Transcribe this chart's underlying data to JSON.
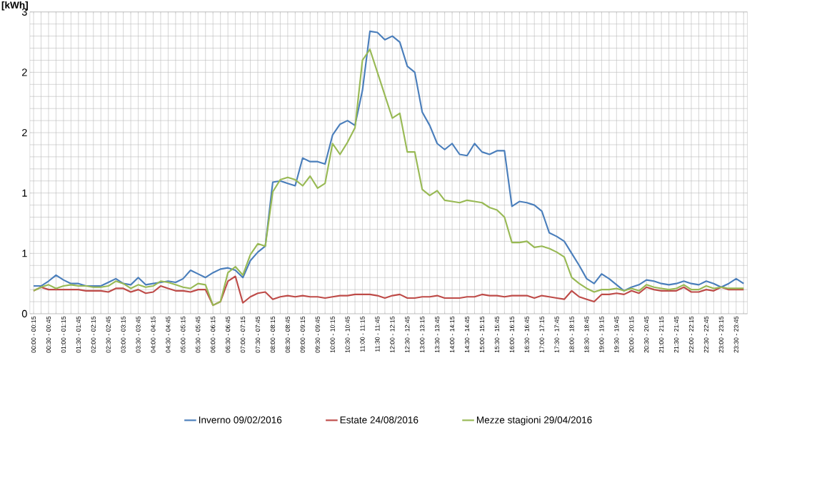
{
  "chart_data": {
    "type": "line",
    "ylabel": "[kWh]",
    "categories": [
      "00:00 - 00:15",
      null,
      "00:30 - 00:45",
      null,
      "01:00 - 01:15",
      null,
      "01:30 - 01:45",
      null,
      "02:00 - 02:15",
      null,
      "02:30 - 02:45",
      null,
      "03:00 - 03:15",
      null,
      "03:30 - 03:45",
      null,
      "04:00 - 04:15",
      null,
      "04:30 - 04:45",
      null,
      "05:00 - 05:15",
      null,
      "05:30 - 05:45",
      null,
      "06:00 - 06:15",
      null,
      "06:30 - 06:45",
      null,
      "07:00 - 07:15",
      null,
      "07:30 - 07:45",
      null,
      "08:00 - 08:15",
      null,
      "08:30 - 08:45",
      null,
      "09:00 - 09:15",
      null,
      "09:30 - 09:45",
      null,
      "10:00 - 10:15",
      null,
      "10:30 - 10:45",
      null,
      "11:00 - 11:15",
      null,
      "11:30 - 11:45",
      null,
      "12:00 - 12:15",
      null,
      "12:30 - 12:45",
      null,
      "13:00 - 13:15",
      null,
      "13:30 - 13:45",
      null,
      "14:00 - 14:15",
      null,
      "14:30 - 14:45",
      null,
      "15:00 - 15:15",
      null,
      "15:30 - 15:45",
      null,
      "16:00 - 16:15",
      null,
      "16:30 - 16:45",
      null,
      "17:00 - 17:15",
      null,
      "17:30 - 17:45",
      null,
      "18:00 - 18:15",
      null,
      "18:30 - 18:45",
      null,
      "19:00 - 19:15",
      null,
      "19:30 - 19:45",
      null,
      "20:00 - 20:15",
      null,
      "20:30 - 20:45",
      null,
      "21:00 - 21:15",
      null,
      "21:30 - 21:45",
      null,
      "22:00 - 22:15",
      null,
      "22:30 - 22:45",
      null,
      "23:00 - 23:15",
      null,
      "23:30 - 23:45",
      null
    ],
    "series": [
      {
        "name": "Inverno 09/02/2016",
        "color": "#4a7ebb",
        "values": [
          0.23,
          0.23,
          0.27,
          0.32,
          0.28,
          0.25,
          0.25,
          0.23,
          0.23,
          0.23,
          0.26,
          0.29,
          0.25,
          0.24,
          0.3,
          0.24,
          0.25,
          0.26,
          0.27,
          0.26,
          0.29,
          0.36,
          0.33,
          0.3,
          0.34,
          0.37,
          0.38,
          0.36,
          0.3,
          0.44,
          0.51,
          0.56,
          1.09,
          1.1,
          1.08,
          1.06,
          1.29,
          1.26,
          1.26,
          1.24,
          1.48,
          1.57,
          1.6,
          1.56,
          1.85,
          2.34,
          2.33,
          2.27,
          2.3,
          2.25,
          2.05,
          2.0,
          1.67,
          1.56,
          1.41,
          1.36,
          1.41,
          1.32,
          1.31,
          1.41,
          1.34,
          1.32,
          1.35,
          1.35,
          0.89,
          0.93,
          0.92,
          0.9,
          0.85,
          0.67,
          0.64,
          0.6,
          0.5,
          0.4,
          0.29,
          0.25,
          0.33,
          0.29,
          0.24,
          0.19,
          0.22,
          0.24,
          0.28,
          0.27,
          0.25,
          0.24,
          0.25,
          0.27,
          0.25,
          0.24,
          0.27,
          0.25,
          0.22,
          0.25,
          0.29,
          0.25
        ]
      },
      {
        "name": "Estate 24/08/2016",
        "color": "#be4b48",
        "values": [
          0.19,
          0.22,
          0.2,
          0.2,
          0.2,
          0.2,
          0.2,
          0.19,
          0.19,
          0.19,
          0.18,
          0.21,
          0.21,
          0.18,
          0.2,
          0.17,
          0.18,
          0.23,
          0.21,
          0.19,
          0.19,
          0.18,
          0.2,
          0.2,
          0.07,
          0.1,
          0.27,
          0.31,
          0.09,
          0.14,
          0.17,
          0.18,
          0.12,
          0.14,
          0.15,
          0.14,
          0.15,
          0.14,
          0.14,
          0.13,
          0.14,
          0.15,
          0.15,
          0.16,
          0.16,
          0.16,
          0.15,
          0.13,
          0.15,
          0.16,
          0.13,
          0.13,
          0.14,
          0.14,
          0.15,
          0.13,
          0.13,
          0.13,
          0.14,
          0.14,
          0.16,
          0.15,
          0.15,
          0.14,
          0.15,
          0.15,
          0.15,
          0.13,
          0.15,
          0.14,
          0.13,
          0.12,
          0.19,
          0.14,
          0.12,
          0.1,
          0.16,
          0.16,
          0.17,
          0.16,
          0.19,
          0.17,
          0.22,
          0.2,
          0.19,
          0.19,
          0.19,
          0.22,
          0.18,
          0.18,
          0.2,
          0.19,
          0.22,
          0.2,
          0.2,
          0.2
        ]
      },
      {
        "name": "Mezze stagioni 29/04/2016",
        "color": "#98b954",
        "values": [
          0.19,
          0.22,
          0.24,
          0.21,
          0.23,
          0.24,
          0.23,
          0.23,
          0.22,
          0.22,
          0.23,
          0.27,
          0.25,
          0.21,
          0.24,
          0.22,
          0.23,
          0.27,
          0.26,
          0.24,
          0.22,
          0.21,
          0.25,
          0.24,
          0.07,
          0.1,
          0.34,
          0.39,
          0.32,
          0.49,
          0.58,
          0.56,
          1.01,
          1.11,
          1.13,
          1.11,
          1.06,
          1.14,
          1.04,
          1.08,
          1.41,
          1.32,
          1.42,
          1.54,
          2.1,
          2.19,
          2.0,
          1.81,
          1.62,
          1.66,
          1.34,
          1.34,
          1.03,
          0.98,
          1.02,
          0.94,
          0.93,
          0.92,
          0.94,
          0.93,
          0.92,
          0.88,
          0.86,
          0.8,
          0.59,
          0.59,
          0.6,
          0.55,
          0.56,
          0.54,
          0.51,
          0.47,
          0.3,
          0.25,
          0.21,
          0.18,
          0.2,
          0.2,
          0.21,
          0.19,
          0.21,
          0.19,
          0.24,
          0.22,
          0.21,
          0.2,
          0.21,
          0.24,
          0.2,
          0.2,
          0.23,
          0.21,
          0.22,
          0.21,
          0.21,
          0.21
        ]
      }
    ],
    "ylim": [
      0,
      2.5
    ],
    "yticks": [
      0,
      {
        "value": 0.5,
        "label": "1"
      },
      1,
      {
        "value": 1.5,
        "label": "2"
      },
      2,
      {
        "value": 2.5,
        "label": "3"
      }
    ],
    "grid": true,
    "legend": "bottom",
    "marker": "none",
    "line_style": "solid"
  }
}
